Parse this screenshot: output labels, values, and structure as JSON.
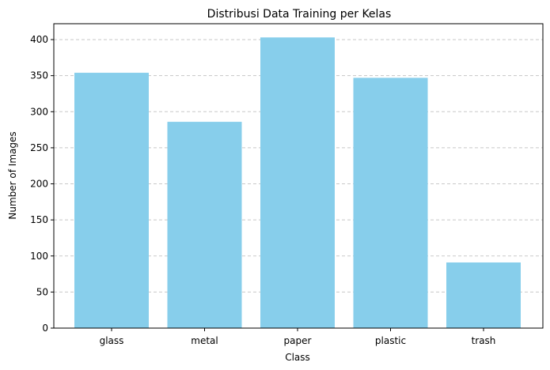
{
  "chart_data": {
    "type": "bar",
    "title": "Distribusi Data Training per Kelas",
    "xlabel": "Class",
    "ylabel": "Number of Images",
    "categories": [
      "glass",
      "metal",
      "paper",
      "plastic",
      "trash"
    ],
    "values": [
      354,
      286,
      403,
      347,
      91
    ],
    "ylim": [
      0,
      422
    ],
    "yticks": [
      0,
      50,
      100,
      150,
      200,
      250,
      300,
      350,
      400
    ],
    "grid": "y-dashed",
    "bar_color": "#87CEEB"
  }
}
